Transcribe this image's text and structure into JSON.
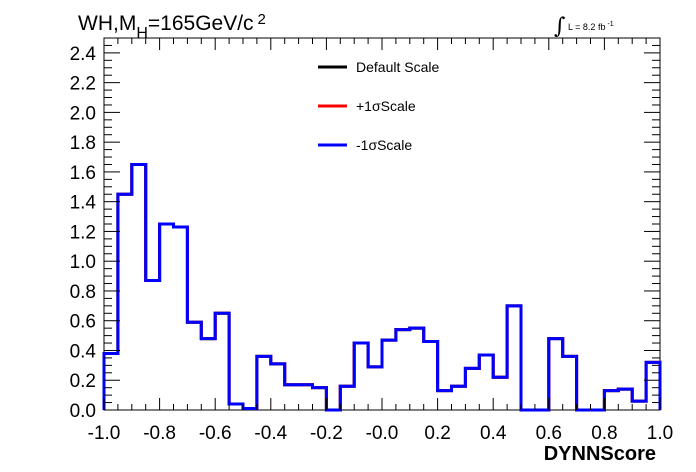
{
  "chart_data": {
    "type": "line",
    "title": {
      "main": "WH,M",
      "sub": "H",
      "rest": "=165GeV/c",
      "sup": "2"
    },
    "lumi": {
      "text": "L = 8.2 fb",
      "sup": "-1"
    },
    "xlabel": "DYNNScore",
    "ylabel": "",
    "xlim": [
      -1.0,
      1.0
    ],
    "ylim": [
      0,
      2.5
    ],
    "x_ticks": [
      "-1.0",
      "-0.8",
      "-0.6",
      "-0.4",
      "-0.2",
      "-0.0",
      "0.2",
      "0.4",
      "0.6",
      "0.8",
      "1.0"
    ],
    "y_ticks": [
      "0.0",
      "0.2",
      "0.4",
      "0.6",
      "0.8",
      "1.0",
      "1.2",
      "1.4",
      "1.6",
      "1.8",
      "2.0",
      "2.2",
      "2.4"
    ],
    "bin_edges": [
      -1.0,
      -0.95,
      -0.9,
      -0.85,
      -0.8,
      -0.75,
      -0.7,
      -0.65,
      -0.6,
      -0.55,
      -0.5,
      -0.45,
      -0.4,
      -0.35,
      -0.3,
      -0.25,
      -0.2,
      -0.15,
      -0.1,
      -0.05,
      0.0,
      0.05,
      0.1,
      0.15,
      0.2,
      0.25,
      0.3,
      0.35,
      0.4,
      0.45,
      0.5,
      0.55,
      0.6,
      0.65,
      0.7,
      0.75,
      0.8,
      0.85,
      0.9,
      0.95,
      1.0
    ],
    "series": [
      {
        "name": "Default Scale",
        "color": "#000000",
        "values": [
          0.38,
          1.45,
          1.65,
          0.87,
          1.25,
          1.23,
          0.59,
          0.48,
          0.65,
          0.04,
          0.01,
          0.36,
          0.31,
          0.17,
          0.17,
          0.15,
          0.0,
          0.16,
          0.45,
          0.29,
          0.47,
          0.54,
          0.55,
          0.46,
          0.13,
          0.16,
          0.28,
          0.37,
          0.22,
          0.7,
          0.0,
          0.0,
          0.48,
          0.36,
          0.0,
          0.0,
          0.13,
          0.14,
          0.06,
          0.32
        ]
      },
      {
        "name": "+1σScale",
        "color": "#ff0000",
        "values": [
          0.38,
          1.45,
          1.65,
          0.87,
          1.25,
          1.23,
          0.59,
          0.48,
          0.65,
          0.04,
          0.01,
          0.36,
          0.31,
          0.17,
          0.17,
          0.15,
          0.0,
          0.16,
          0.45,
          0.29,
          0.47,
          0.54,
          0.55,
          0.46,
          0.13,
          0.16,
          0.28,
          0.37,
          0.22,
          0.7,
          0.0,
          0.0,
          0.48,
          0.36,
          0.0,
          0.0,
          0.13,
          0.14,
          0.06,
          0.32
        ]
      },
      {
        "name": "-1σScale",
        "color": "#0000ff",
        "values": [
          0.38,
          1.45,
          1.65,
          0.87,
          1.25,
          1.23,
          0.59,
          0.48,
          0.65,
          0.04,
          0.01,
          0.36,
          0.31,
          0.17,
          0.17,
          0.15,
          0.0,
          0.16,
          0.45,
          0.29,
          0.47,
          0.54,
          0.55,
          0.46,
          0.13,
          0.16,
          0.28,
          0.37,
          0.22,
          0.7,
          0.0,
          0.0,
          0.48,
          0.36,
          0.0,
          0.0,
          0.13,
          0.14,
          0.06,
          0.32
        ]
      }
    ],
    "legend": {
      "position": "top-center",
      "entries": [
        "Default Scale",
        "+1σScale",
        "-1σScale"
      ]
    },
    "grid": false
  }
}
